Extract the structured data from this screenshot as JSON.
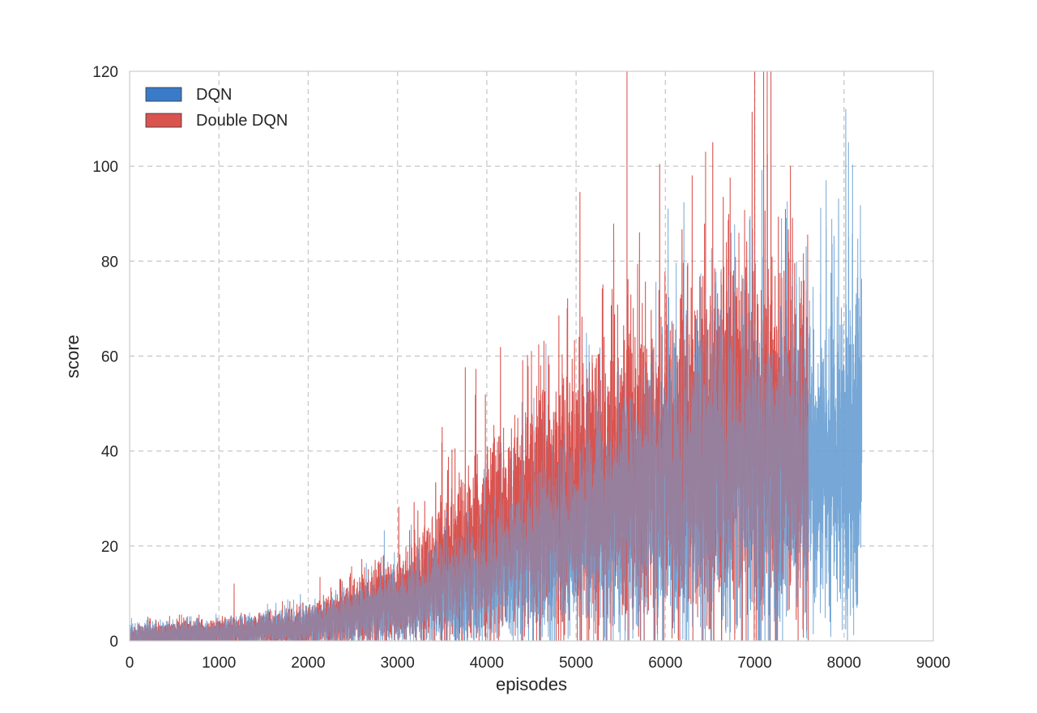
{
  "chart_data": {
    "type": "line",
    "title": "",
    "xlabel": "episodes",
    "ylabel": "score",
    "xlim": [
      0,
      9000
    ],
    "ylim": [
      0,
      120
    ],
    "xticks": [
      0,
      1000,
      2000,
      3000,
      4000,
      5000,
      6000,
      7000,
      8000,
      9000
    ],
    "yticks": [
      0,
      20,
      40,
      60,
      80,
      100,
      120
    ],
    "grid": true,
    "legend_position": "top-left",
    "series": [
      {
        "name": "DQN",
        "color": "#3a7bc8",
        "line_color": "#6a9fd3",
        "episodes": 8200,
        "trend": {
          "x": [
            0,
            1000,
            2000,
            2500,
            3000,
            3500,
            4000,
            4500,
            5000,
            5500,
            6000,
            6500,
            7000,
            7500,
            8000,
            8200
          ],
          "y": [
            1,
            1.5,
            3,
            5,
            7,
            10,
            13,
            17,
            21,
            26,
            30,
            34,
            36,
            36,
            38,
            40
          ]
        },
        "peaks": [
          {
            "x": 6030,
            "y": 91
          },
          {
            "x": 7300,
            "y": 89
          },
          {
            "x": 7800,
            "y": 97
          },
          {
            "x": 8020,
            "y": 112
          },
          {
            "x": 8050,
            "y": 105
          },
          {
            "x": 8200,
            "y": 91
          }
        ]
      },
      {
        "name": "Double DQN",
        "color": "#d9534f",
        "line_color": "#d9534f",
        "episodes": 7600,
        "trend": {
          "x": [
            0,
            1000,
            2000,
            2500,
            3000,
            3500,
            4000,
            4500,
            5000,
            5500,
            6000,
            6500,
            7000,
            7500,
            7600
          ],
          "y": [
            1,
            1.5,
            3,
            6,
            9,
            15,
            21,
            26,
            30,
            35,
            38,
            41,
            43,
            40,
            40
          ]
        },
        "peaks": [
          {
            "x": 1170,
            "y": 12
          },
          {
            "x": 2750,
            "y": 17
          },
          {
            "x": 3500,
            "y": 45
          },
          {
            "x": 4500,
            "y": 61
          },
          {
            "x": 4900,
            "y": 70
          },
          {
            "x": 5300,
            "y": 75
          },
          {
            "x": 5570,
            "y": 120
          },
          {
            "x": 5710,
            "y": 86
          },
          {
            "x": 6300,
            "y": 98
          },
          {
            "x": 6450,
            "y": 103
          },
          {
            "x": 6530,
            "y": 105
          },
          {
            "x": 7000,
            "y": 120
          },
          {
            "x": 7100,
            "y": 120
          },
          {
            "x": 7140,
            "y": 120
          },
          {
            "x": 7400,
            "y": 100
          }
        ]
      }
    ]
  }
}
